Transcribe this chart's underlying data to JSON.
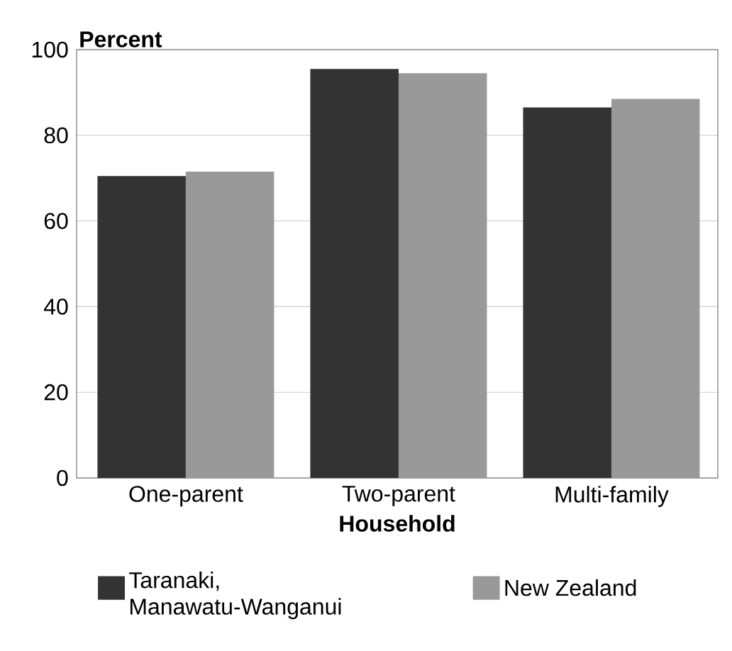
{
  "chart_data": {
    "type": "bar",
    "xlabel": "Household",
    "ylabel": "Percent",
    "categories": [
      "One-parent",
      "Two-parent",
      "Multi-family"
    ],
    "series": [
      {
        "name": "Taranaki, Manawatu-Wanganui",
        "color": "#333333",
        "values": [
          70.5,
          95.5,
          86.5
        ]
      },
      {
        "name": "New Zealand",
        "color": "#999999",
        "values": [
          71.5,
          94.5,
          88.5
        ]
      }
    ],
    "ylim": [
      0,
      100
    ],
    "yticks": [
      0,
      20,
      40,
      60,
      80,
      100
    ],
    "grid": "y",
    "legend": "bottom"
  }
}
